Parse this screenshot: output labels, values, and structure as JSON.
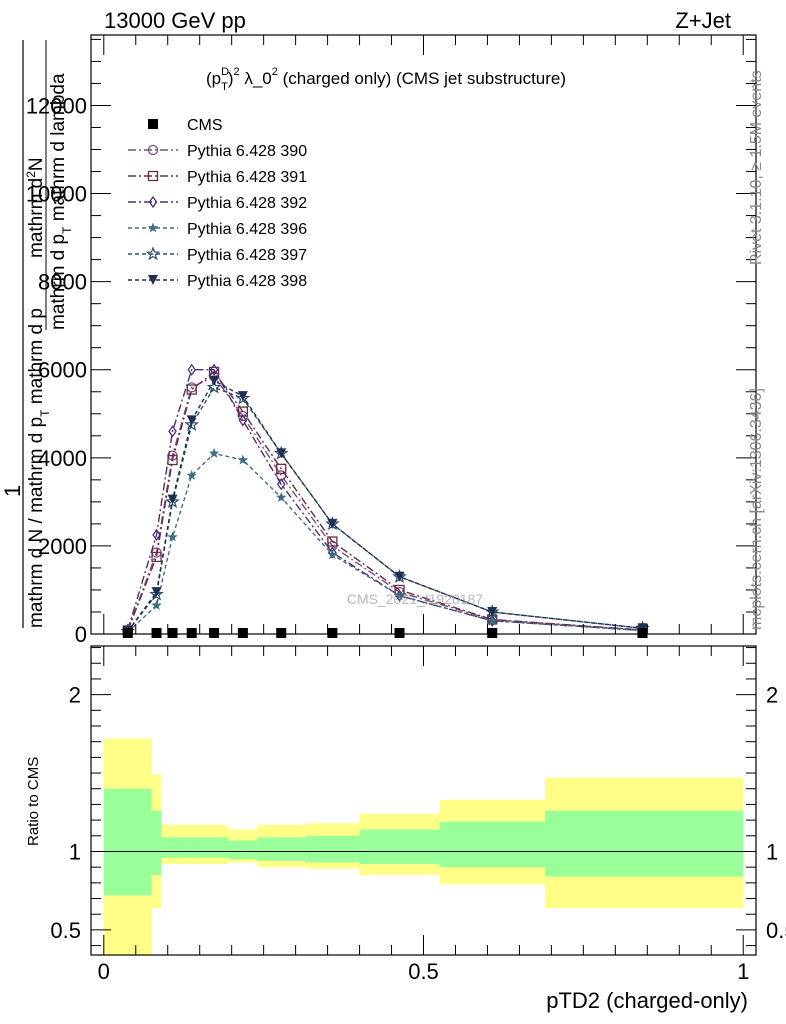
{
  "header": {
    "energy": "13000 GeV pp",
    "process": "Z+Jet",
    "title_main": "(p",
    "title_sup_D": "D",
    "title_sub_T": "T",
    "title_sup_2": "2",
    "title_rest": " λ_0",
    "title_sup_2b": "2",
    "title_tail": " (charged only) (CMS jet substructure)"
  },
  "side_labels": {
    "rivet": "Rivet 3.1.10, ≥ 1.5M events",
    "mcplots": "mcplots.cern.ch [arXiv:1306.3436]"
  },
  "watermark": "CMS_2021_I1920187",
  "ylabel_upper": {
    "one": "1",
    "numer1": "mathrm d",
    "numer1_sup": "2",
    "numer1_tail": "N",
    "denom1": "mathrm d p",
    "denom1_sub": "T",
    "denom1_tail": " mathrm d lambda",
    "frac2": "mathrm d N / mathrm d p",
    "frac2_sub": "T",
    "frac2_tail": " mathrm d p"
  },
  "ylabel_lower": "Ratio to CMS",
  "xlabel": "pTD2 (charged-only)",
  "legend": [
    {
      "name": "CMS",
      "color": "#000000",
      "marker": "square-filled",
      "dash": "none"
    },
    {
      "name": "Pythia 6.428 390",
      "color": "#7f4f7f",
      "marker": "circle-open",
      "dash": "8,3,2,3"
    },
    {
      "name": "Pythia 6.428 391",
      "color": "#6b2e3e",
      "marker": "square-open",
      "dash": "8,3,2,3"
    },
    {
      "name": "Pythia 6.428 392",
      "color": "#4f2e7f",
      "marker": "diamond-open",
      "dash": "8,3,2,3"
    },
    {
      "name": "Pythia 6.428 396",
      "color": "#3f6f7f",
      "marker": "star-filled",
      "dash": "4,3"
    },
    {
      "name": "Pythia 6.428 397",
      "color": "#2f4f6f",
      "marker": "star-open",
      "dash": "4,3"
    },
    {
      "name": "Pythia 6.428 398",
      "color": "#1f2f4f",
      "marker": "triangle-down-filled",
      "dash": "4,3"
    }
  ],
  "chart_data": [
    {
      "type": "line",
      "panel": "main",
      "xlim": [
        -0.02,
        1.02
      ],
      "ylim": [
        0,
        13600
      ],
      "yticks": [
        0,
        2000,
        4000,
        6000,
        8000,
        10000,
        12000
      ],
      "ytick_labels": [
        "0",
        "2000",
        "4000",
        "6000",
        "8000",
        "10000",
        "12000"
      ],
      "cms": {
        "x": [
          0.0375,
          0.0825,
          0.1075,
          0.1375,
          0.1725,
          0.2175,
          0.2775,
          0.3575,
          0.4625,
          0.6075,
          0.8425
        ],
        "y": [
          0,
          0,
          0,
          0,
          0,
          0,
          0,
          0,
          0,
          0,
          0
        ]
      },
      "x": [
        0.0375,
        0.0825,
        0.1075,
        0.1375,
        0.1725,
        0.2175,
        0.2775,
        0.3575,
        0.4625,
        0.6075,
        0.8425
      ],
      "series": [
        {
          "name": "Pythia 6.428 390",
          "values": [
            80,
            1850,
            4050,
            5600,
            5850,
            4950,
            3600,
            2000,
            950,
            320,
            90
          ]
        },
        {
          "name": "Pythia 6.428 391",
          "values": [
            80,
            1750,
            3950,
            5550,
            5950,
            5050,
            3750,
            2100,
            1000,
            330,
            90
          ]
        },
        {
          "name": "Pythia 6.428 392",
          "values": [
            100,
            2250,
            4600,
            6000,
            6000,
            4850,
            3400,
            1850,
            870,
            300,
            80
          ]
        },
        {
          "name": "Pythia 6.428 396",
          "values": [
            40,
            650,
            2200,
            3600,
            4100,
            3950,
            3100,
            1800,
            870,
            300,
            80
          ]
        },
        {
          "name": "Pythia 6.428 397",
          "values": [
            60,
            900,
            3000,
            4750,
            5600,
            5350,
            4100,
            2500,
            1300,
            500,
            130
          ]
        },
        {
          "name": "Pythia 6.428 398",
          "values": [
            60,
            950,
            3050,
            4850,
            5750,
            5400,
            4100,
            2500,
            1300,
            500,
            130
          ]
        }
      ]
    },
    {
      "type": "area",
      "panel": "ratio",
      "xlim": [
        -0.02,
        1.02
      ],
      "ylim": [
        0.34,
        2.31
      ],
      "yticks": [
        0.5,
        1,
        2
      ],
      "ytick_labels": [
        "0.5",
        "1",
        "2"
      ],
      "xticks": [
        0,
        0.5,
        1
      ],
      "xtick_labels": [
        "0",
        "0.5",
        "1"
      ],
      "bin_edges": [
        0.0,
        0.075,
        0.09,
        0.125,
        0.15,
        0.195,
        0.24,
        0.315,
        0.4,
        0.525,
        0.69,
        1.0
      ],
      "stat_band": {
        "lo": [
          0.72,
          0.85,
          0.96,
          0.96,
          0.96,
          0.95,
          0.94,
          0.93,
          0.92,
          0.9,
          0.84
        ],
        "hi": [
          1.4,
          1.26,
          1.09,
          1.09,
          1.09,
          1.07,
          1.09,
          1.1,
          1.14,
          1.19,
          1.26
        ]
      },
      "syst_band": {
        "lo": [
          0.34,
          0.64,
          0.92,
          0.92,
          0.92,
          0.93,
          0.9,
          0.89,
          0.85,
          0.79,
          0.64
        ],
        "hi": [
          1.72,
          1.49,
          1.17,
          1.17,
          1.17,
          1.14,
          1.17,
          1.18,
          1.24,
          1.33,
          1.47
        ]
      }
    }
  ],
  "colors": {
    "stat_band": "#99ff99",
    "syst_band": "#ffff88",
    "axis": "#000000"
  }
}
